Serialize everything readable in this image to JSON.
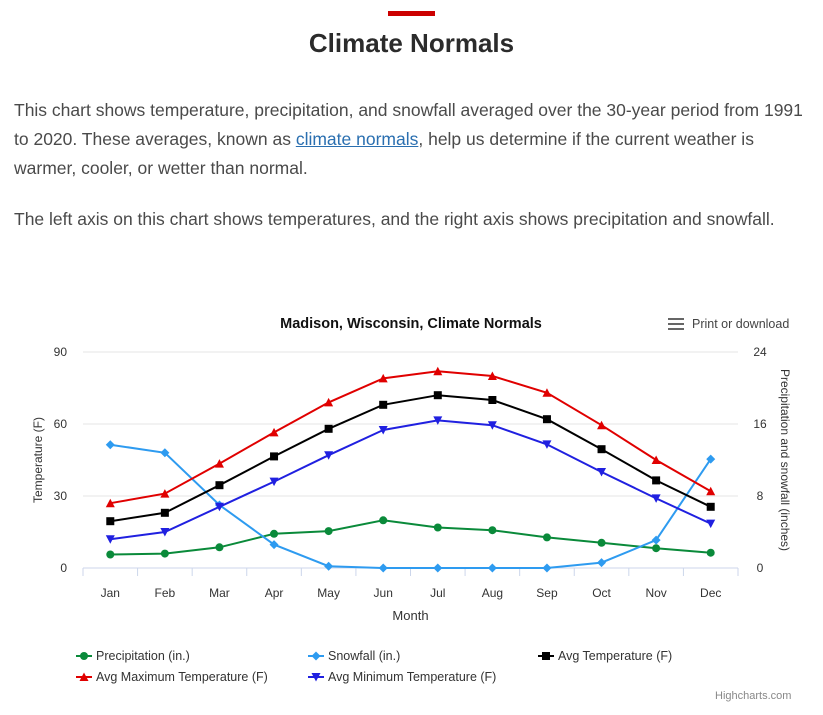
{
  "page": {
    "title": "Climate Normals",
    "intro_before_link": "This chart shows temperature, precipitation, and snowfall averaged over the 30-year period from 1991 to 2020. These averages, known as ",
    "intro_link": "climate normals",
    "intro_after_link": ", help us determine if the current weather is warmer, cooler, or wetter than normal.",
    "intro2": "The left axis on this chart shows temperatures, and the right axis shows precipitation and snowfall.",
    "accent_color": "#c00000"
  },
  "menu": {
    "print_label": "Print or download",
    "icon": "hamburger-menu-icon"
  },
  "credits": "Highcharts.com",
  "chart_data": {
    "type": "line",
    "title": "Madison, Wisconsin, Climate Normals",
    "xlabel": "Month",
    "ylabel_left": "Temperature (F)",
    "ylabel_right": "Precipitation and snowfall (inches)",
    "categories": [
      "Jan",
      "Feb",
      "Mar",
      "Apr",
      "May",
      "Jun",
      "Jul",
      "Aug",
      "Sep",
      "Oct",
      "Nov",
      "Dec"
    ],
    "ylim_left": [
      0,
      90
    ],
    "ylim_right": [
      0,
      24
    ],
    "yticks_left": [
      0,
      30,
      60,
      90
    ],
    "yticks_right": [
      0,
      8,
      16,
      24
    ],
    "grid": true,
    "legend_position": "bottom",
    "series": [
      {
        "name": "Precipitation (in.)",
        "axis": "right",
        "color": "#0a8a3a",
        "marker": "circle",
        "values": [
          1.5,
          1.6,
          2.3,
          3.8,
          4.1,
          5.3,
          4.5,
          4.2,
          3.4,
          2.8,
          2.2,
          1.7
        ]
      },
      {
        "name": "Snowfall (in.)",
        "axis": "right",
        "color": "#2e9bf0",
        "marker": "diamond",
        "values": [
          13.7,
          12.8,
          7.0,
          2.6,
          0.2,
          0.0,
          0.0,
          0.0,
          0.0,
          0.6,
          3.1,
          12.1
        ]
      },
      {
        "name": "Avg Temperature (F)",
        "axis": "left",
        "color": "#000000",
        "marker": "square",
        "values": [
          19.5,
          23.0,
          34.5,
          46.5,
          58.0,
          68.0,
          72.0,
          70.0,
          62.0,
          49.5,
          36.5,
          25.5
        ]
      },
      {
        "name": "Avg Maximum Temperature (F)",
        "axis": "left",
        "color": "#e00000",
        "marker": "triangle",
        "values": [
          27.0,
          31.0,
          43.5,
          56.5,
          69.0,
          79.0,
          82.0,
          80.0,
          73.0,
          59.5,
          45.0,
          32.0
        ]
      },
      {
        "name": "Avg Minimum Temperature (F)",
        "axis": "left",
        "color": "#2020e0",
        "marker": "triangle-down",
        "values": [
          12.0,
          15.0,
          25.5,
          36.0,
          47.0,
          57.5,
          61.5,
          59.5,
          51.5,
          40.0,
          29.0,
          18.5
        ]
      }
    ]
  }
}
